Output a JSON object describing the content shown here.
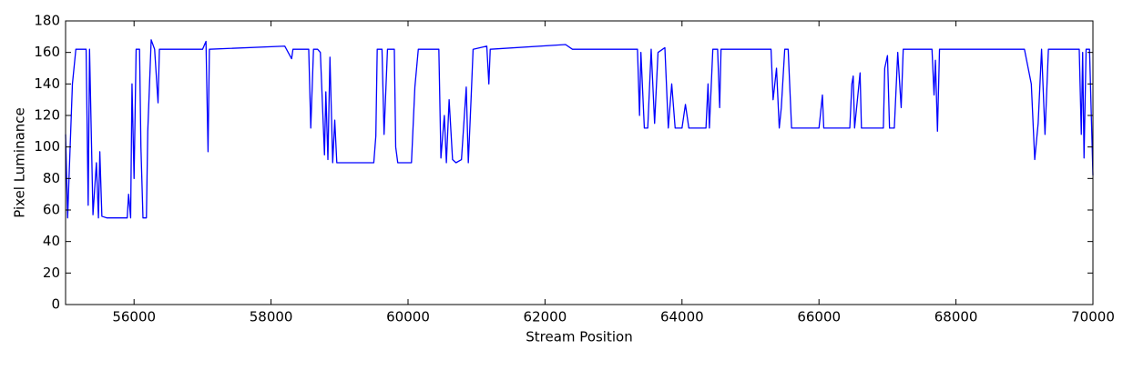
{
  "chart_data": {
    "type": "line",
    "x_label": "Stream Position",
    "y_label": "Pixel Luminance",
    "color": "#0000ff",
    "xlim": [
      55000,
      70000
    ],
    "xticks": [
      56000,
      58000,
      60000,
      62000,
      64000,
      66000,
      68000,
      70000
    ],
    "ylim": [
      0,
      180
    ],
    "yticks": [
      0,
      20,
      40,
      60,
      80,
      100,
      120,
      140,
      160,
      180
    ],
    "x": [
      55000,
      55030,
      55050,
      55100,
      55150,
      55250,
      55300,
      55330,
      55350,
      55400,
      55450,
      55480,
      55500,
      55530,
      55600,
      55900,
      55920,
      55950,
      55970,
      56000,
      56030,
      56080,
      56100,
      56130,
      56180,
      56200,
      56250,
      56300,
      56350,
      56370,
      57000,
      57050,
      57080,
      57100,
      58200,
      58300,
      58320,
      58550,
      58580,
      58620,
      58680,
      58720,
      58780,
      58800,
      58830,
      58860,
      58900,
      58930,
      58960,
      59500,
      59530,
      59550,
      59620,
      59650,
      59700,
      59800,
      59820,
      59850,
      60050,
      60100,
      60150,
      60450,
      60480,
      60530,
      60560,
      60600,
      60650,
      60700,
      60780,
      60850,
      60880,
      60920,
      60950,
      61150,
      61180,
      61200,
      62300,
      62400,
      63350,
      63380,
      63400,
      63450,
      63500,
      63550,
      63600,
      63650,
      63750,
      63800,
      63850,
      63900,
      63950,
      64000,
      64050,
      64100,
      64350,
      64380,
      64400,
      64450,
      64520,
      64550,
      64570,
      65300,
      65330,
      65380,
      65420,
      65450,
      65500,
      65550,
      65600,
      66000,
      66020,
      66050,
      66070,
      66450,
      66480,
      66500,
      66520,
      66600,
      66620,
      66940,
      66960,
      67000,
      67030,
      67100,
      67150,
      67200,
      67230,
      67650,
      67680,
      67700,
      67730,
      67760,
      67800,
      69000,
      69100,
      69150,
      69200,
      69250,
      69300,
      69350,
      69500,
      69800,
      69830,
      69850,
      69870,
      69900,
      69950,
      70000
    ],
    "values": [
      108,
      55,
      80,
      140,
      162,
      162,
      162,
      63,
      162,
      57,
      90,
      55,
      97,
      56,
      55,
      55,
      70,
      55,
      140,
      80,
      162,
      162,
      100,
      55,
      55,
      110,
      168,
      162,
      128,
      162,
      162,
      167,
      97,
      162,
      164,
      156,
      162,
      162,
      112,
      162,
      162,
      160,
      95,
      135,
      92,
      157,
      90,
      117,
      90,
      90,
      107,
      162,
      162,
      108,
      162,
      162,
      100,
      90,
      90,
      138,
      162,
      162,
      93,
      120,
      90,
      130,
      92,
      90,
      92,
      138,
      90,
      130,
      162,
      164,
      140,
      162,
      165,
      162,
      162,
      120,
      160,
      112,
      112,
      162,
      115,
      160,
      163,
      112,
      140,
      112,
      112,
      112,
      127,
      112,
      112,
      140,
      112,
      162,
      162,
      125,
      162,
      162,
      130,
      150,
      112,
      125,
      162,
      162,
      112,
      112,
      120,
      133,
      112,
      112,
      140,
      145,
      112,
      147,
      112,
      112,
      150,
      158,
      112,
      112,
      160,
      125,
      162,
      162,
      133,
      155,
      110,
      162,
      162,
      162,
      140,
      92,
      115,
      162,
      108,
      162,
      162,
      162,
      108,
      160,
      93,
      162,
      162,
      82
    ]
  }
}
